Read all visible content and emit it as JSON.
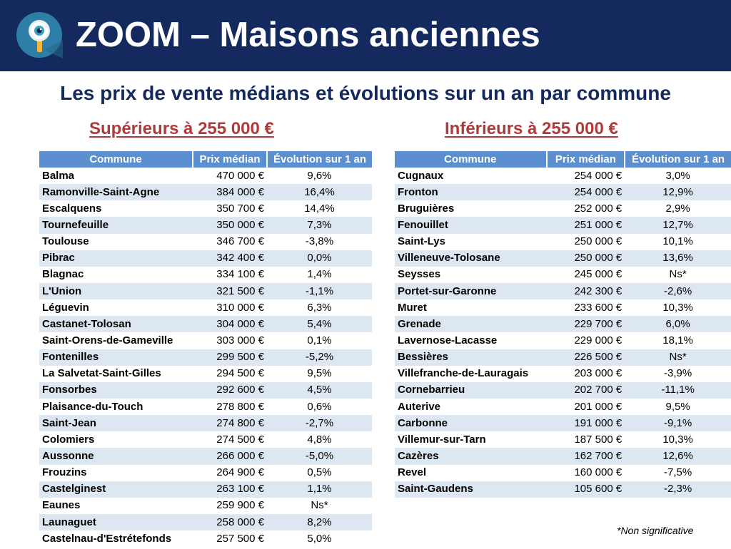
{
  "header": {
    "title": "ZOOM – Maisons anciennes",
    "logo_icon": "magnifier-eye-icon"
  },
  "subtitle": "Les prix de vente médians et évolutions sur un an par commune",
  "colors": {
    "header_bg": "#14295e",
    "table_header_bg": "#5b8fd0",
    "row_stripe": "#dde7f1",
    "section_title": "#b03a3a"
  },
  "left_section": {
    "title": "Supérieurs à 255 000 €",
    "columns": [
      "Commune",
      "Prix médian",
      "Évolution sur 1 an"
    ],
    "rows": [
      {
        "commune": "Balma",
        "prix": "470 000 €",
        "evolution": "9,6%"
      },
      {
        "commune": "Ramonville-Saint-Agne",
        "prix": "384 000 €",
        "evolution": "16,4%"
      },
      {
        "commune": "Escalquens",
        "prix": "350 700 €",
        "evolution": "14,4%"
      },
      {
        "commune": "Tournefeuille",
        "prix": "350 000 €",
        "evolution": "7,3%"
      },
      {
        "commune": "Toulouse",
        "prix": "346 700 €",
        "evolution": "-3,8%"
      },
      {
        "commune": "Pibrac",
        "prix": "342 400 €",
        "evolution": "0,0%"
      },
      {
        "commune": "Blagnac",
        "prix": "334 100 €",
        "evolution": "1,4%"
      },
      {
        "commune": "L'Union",
        "prix": "321 500 €",
        "evolution": "-1,1%"
      },
      {
        "commune": "Léguevin",
        "prix": "310 000 €",
        "evolution": "6,3%"
      },
      {
        "commune": "Castanet-Tolosan",
        "prix": "304 000 €",
        "evolution": "5,4%"
      },
      {
        "commune": "Saint-Orens-de-Gameville",
        "prix": "303 000 €",
        "evolution": "0,1%"
      },
      {
        "commune": "Fontenilles",
        "prix": "299 500 €",
        "evolution": "-5,2%"
      },
      {
        "commune": "La Salvetat-Saint-Gilles",
        "prix": "294 500 €",
        "evolution": "9,5%"
      },
      {
        "commune": "Fonsorbes",
        "prix": "292 600 €",
        "evolution": "4,5%"
      },
      {
        "commune": "Plaisance-du-Touch",
        "prix": "278 800 €",
        "evolution": "0,6%"
      },
      {
        "commune": "Saint-Jean",
        "prix": "274 800 €",
        "evolution": "-2,7%"
      },
      {
        "commune": "Colomiers",
        "prix": "274 500 €",
        "evolution": "4,8%"
      },
      {
        "commune": "Aussonne",
        "prix": "266 000 €",
        "evolution": "-5,0%"
      },
      {
        "commune": "Frouzins",
        "prix": "264 900 €",
        "evolution": "0,5%"
      },
      {
        "commune": "Castelginest",
        "prix": "263 100 €",
        "evolution": "1,1%"
      },
      {
        "commune": "Eaunes",
        "prix": "259 900 €",
        "evolution": "Ns*"
      },
      {
        "commune": "Launaguet",
        "prix": "258 000 €",
        "evolution": "8,2%"
      },
      {
        "commune": "Castelnau-d'Estrétefonds",
        "prix": "257 500 €",
        "evolution": "5,0%"
      }
    ]
  },
  "right_section": {
    "title": "Inférieurs à 255 000 €",
    "columns": [
      "Commune",
      "Prix médian",
      "Évolution sur 1 an"
    ],
    "rows": [
      {
        "commune": "Cugnaux",
        "prix": "254 000 €",
        "evolution": "3,0%"
      },
      {
        "commune": "Fronton",
        "prix": "254 000 €",
        "evolution": "12,9%"
      },
      {
        "commune": "Bruguières",
        "prix": "252 000 €",
        "evolution": "2,9%"
      },
      {
        "commune": "Fenouillet",
        "prix": "251 000 €",
        "evolution": "12,7%"
      },
      {
        "commune": "Saint-Lys",
        "prix": "250 000 €",
        "evolution": "10,1%"
      },
      {
        "commune": "Villeneuve-Tolosane",
        "prix": "250 000 €",
        "evolution": "13,6%"
      },
      {
        "commune": "Seysses",
        "prix": "245 000 €",
        "evolution": "Ns*"
      },
      {
        "commune": "Portet-sur-Garonne",
        "prix": "242 300 €",
        "evolution": "-2,6%"
      },
      {
        "commune": "Muret",
        "prix": "233 600 €",
        "evolution": "10,3%"
      },
      {
        "commune": "Grenade",
        "prix": "229 700 €",
        "evolution": "6,0%"
      },
      {
        "commune": "Lavernose-Lacasse",
        "prix": "229 000 €",
        "evolution": "18,1%"
      },
      {
        "commune": "Bessières",
        "prix": "226 500 €",
        "evolution": "Ns*"
      },
      {
        "commune": "Villefranche-de-Lauragais",
        "prix": "203 000 €",
        "evolution": "-3,9%"
      },
      {
        "commune": "Cornebarrieu",
        "prix": "202 700 €",
        "evolution": "-11,1%"
      },
      {
        "commune": "Auterive",
        "prix": "201 000 €",
        "evolution": "9,5%"
      },
      {
        "commune": "Carbonne",
        "prix": "191 000 €",
        "evolution": "-9,1%"
      },
      {
        "commune": "Villemur-sur-Tarn",
        "prix": "187 500 €",
        "evolution": "10,3%"
      },
      {
        "commune": "Cazères",
        "prix": "162 700 €",
        "evolution": "12,6%"
      },
      {
        "commune": "Revel",
        "prix": "160 000 €",
        "evolution": "-7,5%"
      },
      {
        "commune": "Saint-Gaudens",
        "prix": "105 600 €",
        "evolution": "-2,3%"
      }
    ]
  },
  "footnote": "*Non significative"
}
